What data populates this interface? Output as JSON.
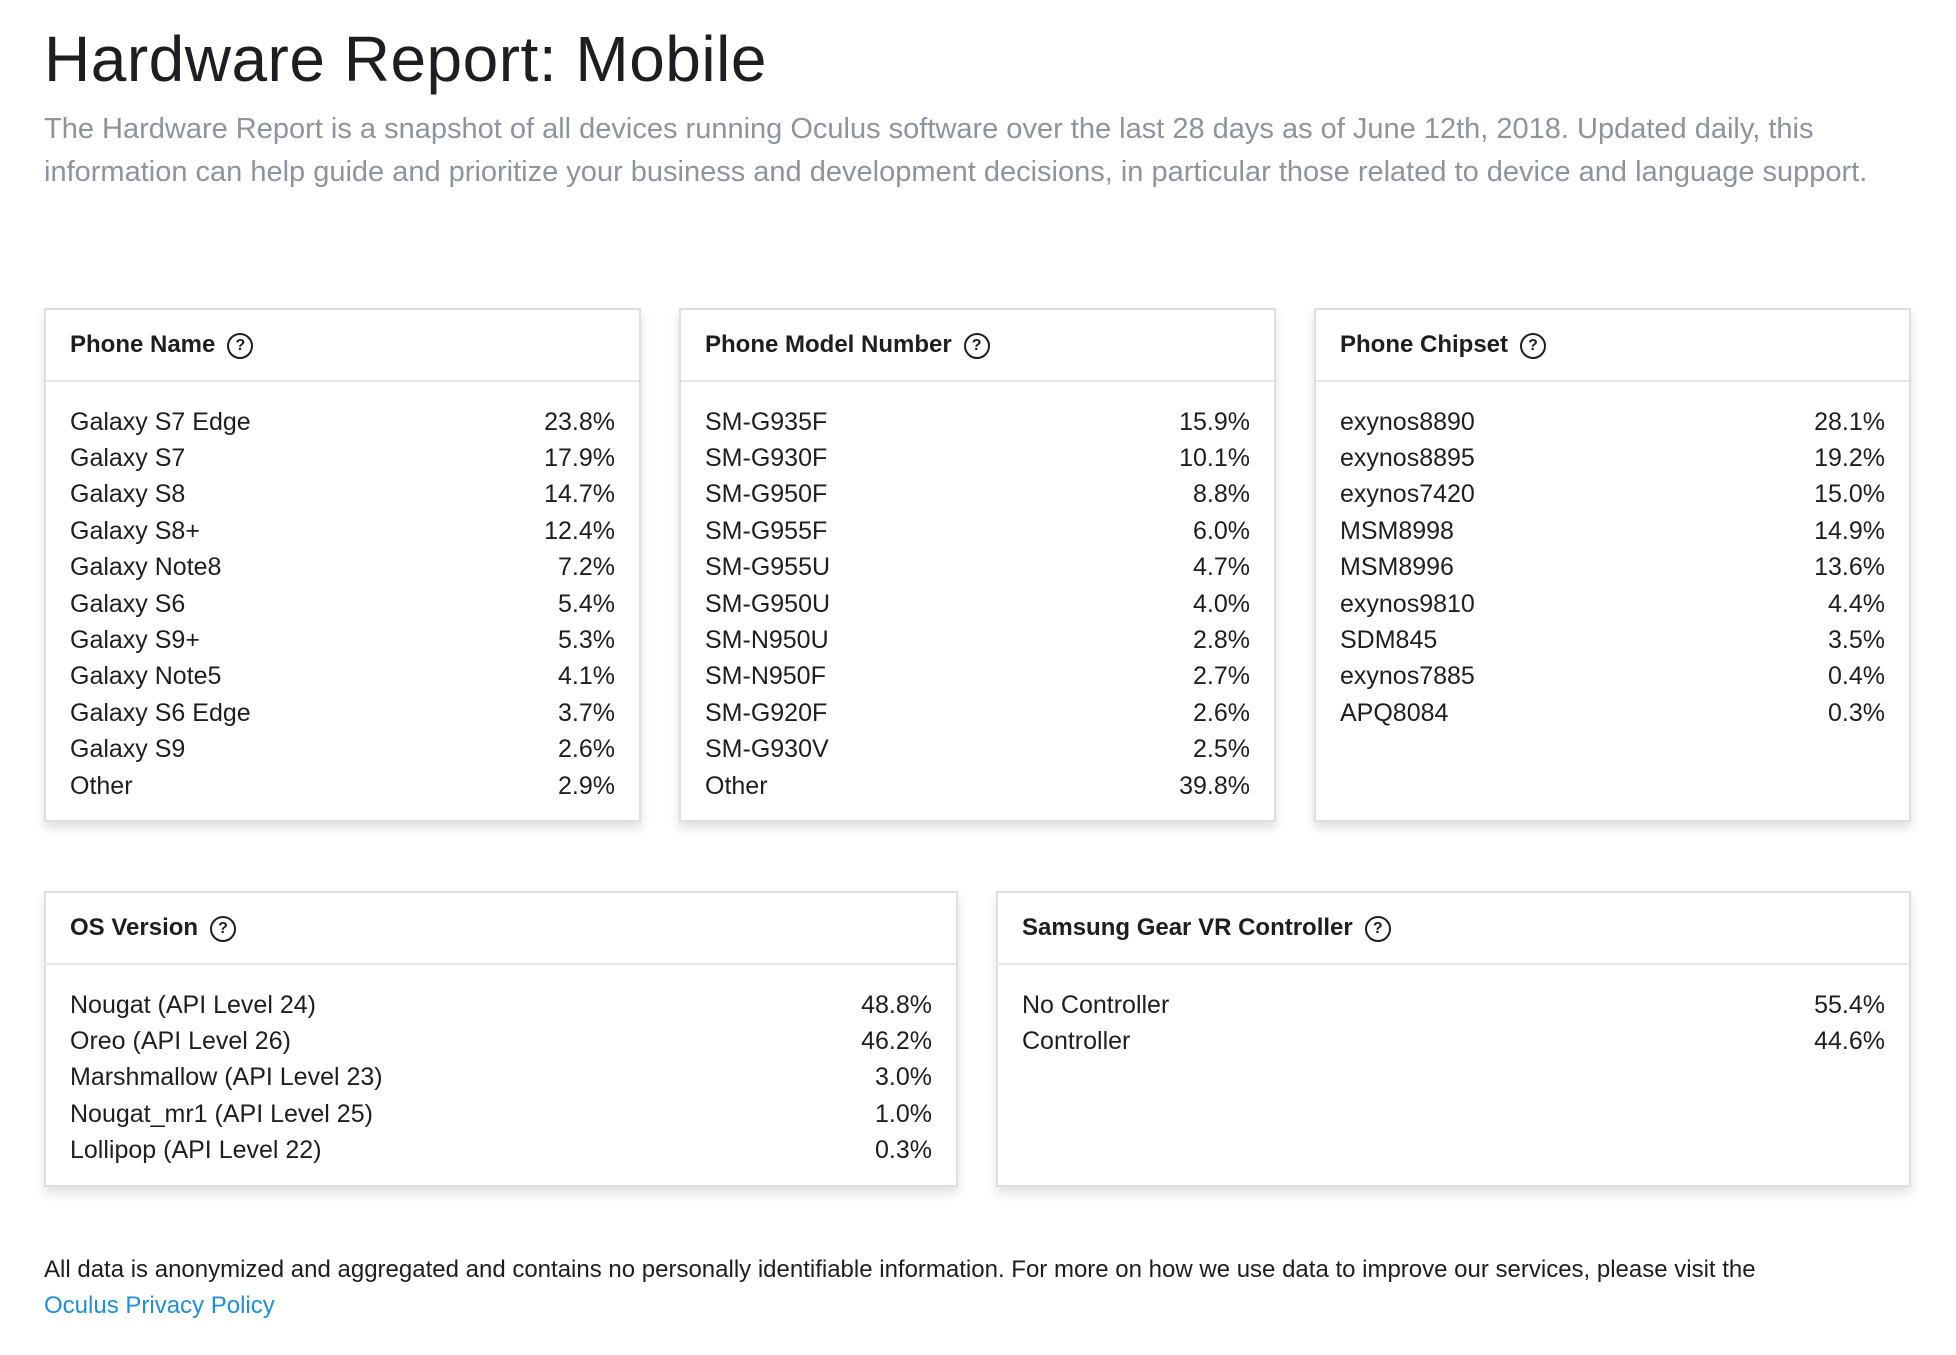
{
  "header": {
    "title": "Hardware Report: Mobile",
    "intro": "The Hardware Report is a snapshot of all devices running Oculus software over the last 28 days as of June 12th, 2018. Updated daily, this information can help guide and prioritize your business and development decisions, in particular those related to device and language support."
  },
  "help_glyph": "?",
  "cards": {
    "phone_name": {
      "title": "Phone Name",
      "rows": [
        {
          "label": "Galaxy S7 Edge",
          "value": "23.8%"
        },
        {
          "label": "Galaxy S7",
          "value": "17.9%"
        },
        {
          "label": "Galaxy S8",
          "value": "14.7%"
        },
        {
          "label": "Galaxy S8+",
          "value": "12.4%"
        },
        {
          "label": "Galaxy Note8",
          "value": "7.2%"
        },
        {
          "label": "Galaxy S6",
          "value": "5.4%"
        },
        {
          "label": "Galaxy S9+",
          "value": "5.3%"
        },
        {
          "label": "Galaxy Note5",
          "value": "4.1%"
        },
        {
          "label": "Galaxy S6 Edge",
          "value": "3.7%"
        },
        {
          "label": "Galaxy S9",
          "value": "2.6%"
        },
        {
          "label": "Other",
          "value": "2.9%"
        }
      ]
    },
    "phone_model": {
      "title": "Phone Model Number",
      "rows": [
        {
          "label": "SM-G935F",
          "value": "15.9%"
        },
        {
          "label": "SM-G930F",
          "value": "10.1%"
        },
        {
          "label": "SM-G950F",
          "value": "8.8%"
        },
        {
          "label": "SM-G955F",
          "value": "6.0%"
        },
        {
          "label": "SM-G955U",
          "value": "4.7%"
        },
        {
          "label": "SM-G950U",
          "value": "4.0%"
        },
        {
          "label": "SM-N950U",
          "value": "2.8%"
        },
        {
          "label": "SM-N950F",
          "value": "2.7%"
        },
        {
          "label": "SM-G920F",
          "value": "2.6%"
        },
        {
          "label": "SM-G930V",
          "value": "2.5%"
        },
        {
          "label": "Other",
          "value": "39.8%"
        }
      ]
    },
    "phone_chipset": {
      "title": "Phone Chipset",
      "rows": [
        {
          "label": "exynos8890",
          "value": "28.1%"
        },
        {
          "label": "exynos8895",
          "value": "19.2%"
        },
        {
          "label": "exynos7420",
          "value": "15.0%"
        },
        {
          "label": "MSM8998",
          "value": "14.9%"
        },
        {
          "label": "MSM8996",
          "value": "13.6%"
        },
        {
          "label": "exynos9810",
          "value": "4.4%"
        },
        {
          "label": "SDM845",
          "value": "3.5%"
        },
        {
          "label": "exynos7885",
          "value": "0.4%"
        },
        {
          "label": "APQ8084",
          "value": "0.3%"
        }
      ]
    },
    "os_version": {
      "title": "OS Version",
      "rows": [
        {
          "label": "Nougat (API Level 24)",
          "value": "48.8%"
        },
        {
          "label": "Oreo (API Level 26)",
          "value": "46.2%"
        },
        {
          "label": "Marshmallow (API Level 23)",
          "value": "3.0%"
        },
        {
          "label": "Nougat_mr1 (API Level 25)",
          "value": "1.0%"
        },
        {
          "label": "Lollipop (API Level 22)",
          "value": "0.3%"
        }
      ]
    },
    "gear_vr_controller": {
      "title": "Samsung Gear VR Controller",
      "rows": [
        {
          "label": "No Controller",
          "value": "55.4%"
        },
        {
          "label": "Controller",
          "value": "44.6%"
        }
      ]
    }
  },
  "footer": {
    "text": "All data is anonymized and aggregated and contains no personally identifiable information. For more on how we use data to improve our services, please visit the",
    "link_label": "Oculus Privacy Policy"
  }
}
